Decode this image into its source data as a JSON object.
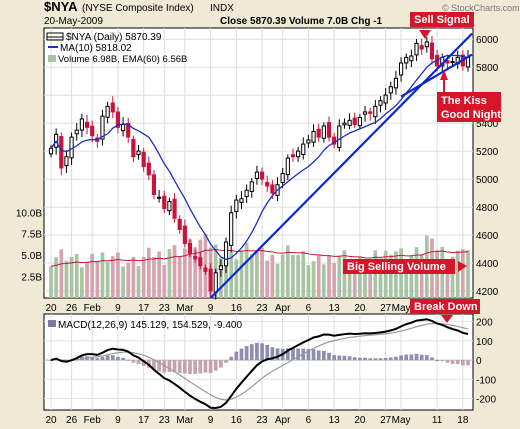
{
  "header": {
    "symbol": "$NYA",
    "name": "(NYSE Composite Index)",
    "type": "INDX",
    "date": "20-May-2009",
    "stats": "Close 5870.39  Volume 7.0B  Chg -1",
    "watermark": "© StockCharts.com"
  },
  "legend": {
    "price": "$NYA (Daily) 5870.39",
    "ma": "MA(10) 5818.02",
    "volume": "Volume 6.98B, EMA(60) 6.56B"
  },
  "annotations": {
    "sell_signal": "Sell Signal",
    "kiss_1": "The Kiss",
    "kiss_2": "Good Night",
    "big_volume": "Big Selling Volume",
    "break_down": "Break Down"
  },
  "colors": {
    "up": "#000000",
    "down": "#c8143c",
    "ma": "#1c2ec8",
    "trendline": "#0a28d2",
    "vol_up": "#a9c4a2",
    "vol_down": "#d6a4ae",
    "ema_vol": "#c8143c",
    "panel_bg": "#ffffff",
    "ann_bg": "#d6152b"
  },
  "chart_data": [
    {
      "type": "candlestick",
      "title": "$NYA (NYSE Composite Index)",
      "ylim": [
        4150,
        6080
      ],
      "y_ticks": [
        4200,
        4400,
        4600,
        4800,
        5000,
        5200,
        5400,
        5600,
        5800,
        6000
      ],
      "x_ticks": [
        "20",
        "26",
        "Feb",
        "9",
        "17",
        "23",
        "Mar",
        "9",
        "16",
        "23",
        "Apr",
        "6",
        "13",
        "20",
        "27",
        "May",
        "11",
        "18"
      ],
      "x_tick_index": [
        0,
        4,
        8,
        13,
        18,
        22,
        26,
        31,
        36,
        41,
        45,
        50,
        55,
        60,
        65,
        68,
        75,
        80
      ],
      "close": [
        5220,
        5320,
        5080,
        5160,
        5300,
        5350,
        5430,
        5370,
        5310,
        5270,
        5450,
        5520,
        5480,
        5370,
        5390,
        5300,
        5160,
        5200,
        5090,
        5030,
        4890,
        4870,
        4790,
        4840,
        4720,
        4640,
        4540,
        4470,
        4430,
        4380,
        4340,
        4200,
        4330,
        4380,
        4550,
        4760,
        4850,
        4860,
        4920,
        4980,
        5050,
        5000,
        4950,
        4900,
        4960,
        5040,
        5150,
        5160,
        5200,
        5250,
        5280,
        5340,
        5300,
        5380,
        5300,
        5250,
        5380,
        5400,
        5420,
        5390,
        5440,
        5480,
        5470,
        5520,
        5560,
        5600,
        5660,
        5720,
        5830,
        5870,
        5880,
        5970,
        5930,
        5980,
        5860,
        5810,
        5870,
        5830,
        5840,
        5870,
        5810,
        5870
      ]
    },
    {
      "type": "bar",
      "title": "Volume",
      "ylim": [
        0,
        10.5
      ],
      "y_ticks": [
        2.5,
        5.0,
        7.5,
        10.0
      ],
      "y_tick_labels": [
        "2.5B",
        "5.0B",
        "7.5B",
        "10.0B"
      ]
    },
    {
      "type": "line",
      "title": "MACD(12,26,9) 145.129, 154.529, -9.400",
      "ylim": [
        -260,
        240
      ],
      "y_ticks": [
        -200,
        -100,
        0,
        100,
        200
      ],
      "x_ticks": [
        "20",
        "26",
        "Feb",
        "9",
        "17",
        "23",
        "Mar",
        "9",
        "16",
        "23",
        "Apr",
        "6",
        "13",
        "20",
        "27",
        "May",
        "11",
        "18"
      ]
    }
  ]
}
